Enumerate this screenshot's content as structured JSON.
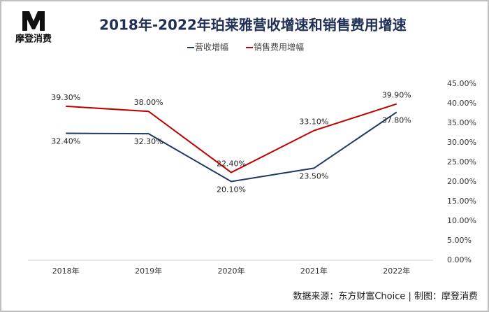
{
  "logo": {
    "text": "摩登消费"
  },
  "source": "数据来源：东方财富Choice  |  制图：摩登消费",
  "chart_data": {
    "type": "line",
    "title": "2018年-2022年珀莱雅营收增速和销售费用增速",
    "categories": [
      "2018年",
      "2019年",
      "2020年",
      "2021年",
      "2022年"
    ],
    "series": [
      {
        "name": "营收增幅",
        "color": "#1f3864",
        "values": [
          32.4,
          32.3,
          20.1,
          23.5,
          37.8
        ],
        "value_labels": [
          "32.40%",
          "32.30%",
          "20.10%",
          "23.50%",
          "37.80%"
        ]
      },
      {
        "name": "销售费用增幅",
        "color": "#c00000",
        "values": [
          39.3,
          38.0,
          22.4,
          33.1,
          39.9
        ],
        "value_labels": [
          "39.30%",
          "38.00%",
          "22.40%",
          "33.10%",
          "39.90%"
        ]
      }
    ],
    "ylim": [
      0,
      45
    ],
    "yticks": [
      {
        "value": 0,
        "label": "0.00%"
      },
      {
        "value": 5,
        "label": "5.00%"
      },
      {
        "value": 10,
        "label": "10.00%"
      },
      {
        "value": 15,
        "label": "15.00%"
      },
      {
        "value": 20,
        "label": "20.00%"
      },
      {
        "value": 25,
        "label": "25.00%"
      },
      {
        "value": 30,
        "label": "30.00%"
      },
      {
        "value": 35,
        "label": "35.00%"
      },
      {
        "value": 40,
        "label": "40.00%"
      },
      {
        "value": 45,
        "label": "45.00%"
      }
    ],
    "y_axis_side": "right",
    "grid": false,
    "legend": "top"
  }
}
